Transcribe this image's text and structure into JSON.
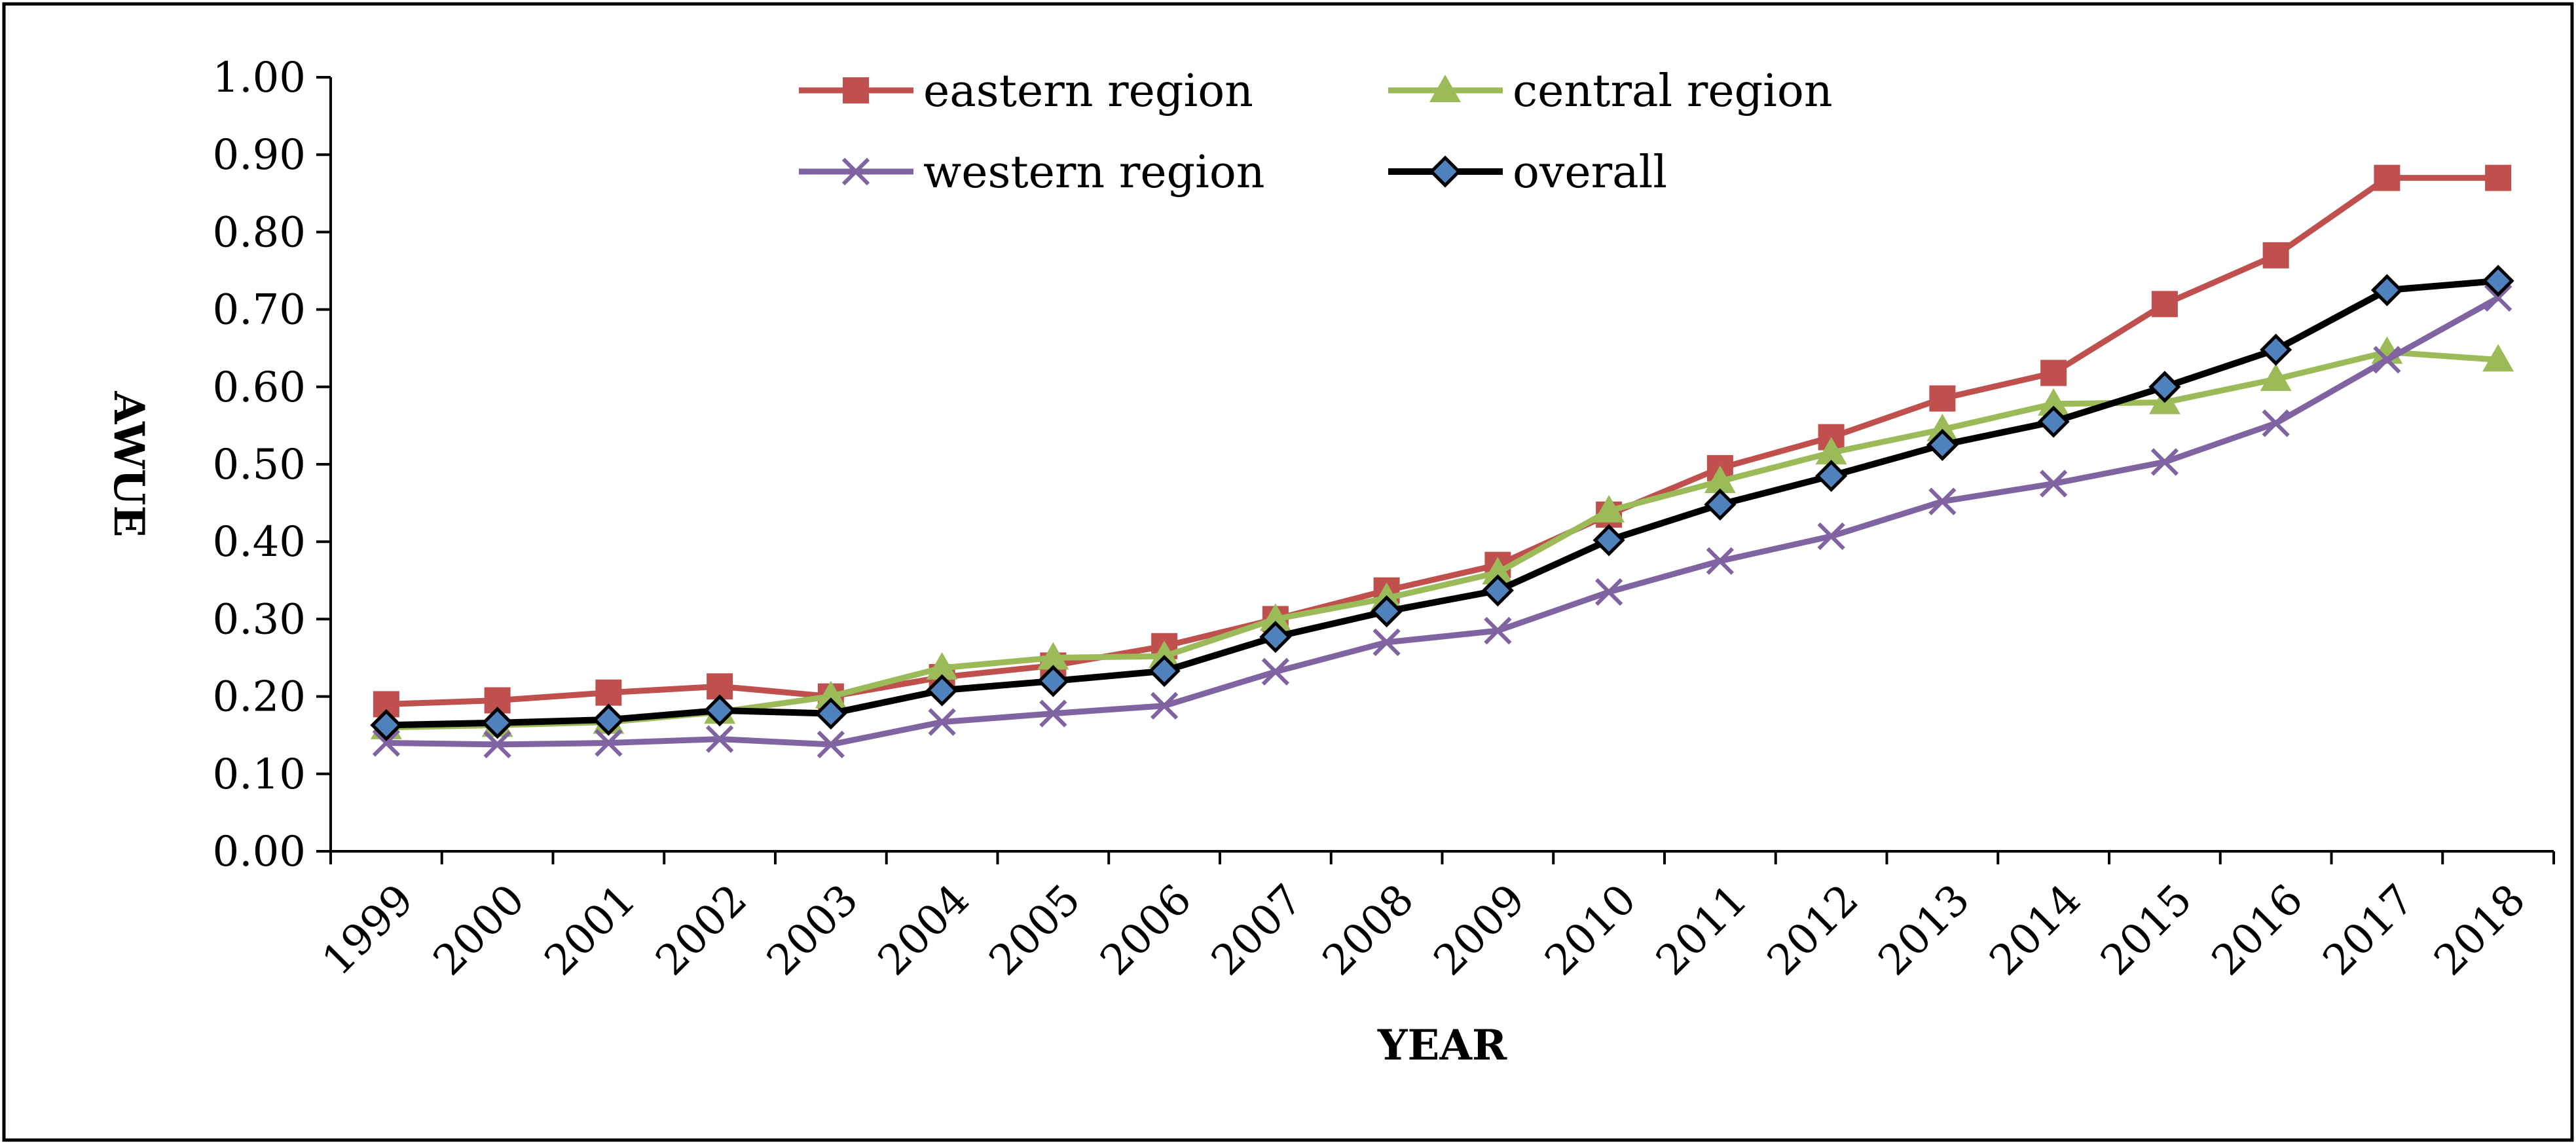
{
  "chart_data": {
    "type": "line",
    "xlabel": "YEAR",
    "ylabel": "AWUE",
    "ylim": [
      0,
      1.0
    ],
    "yticks": [
      "0.00",
      "0.10",
      "0.20",
      "0.30",
      "0.40",
      "0.50",
      "0.60",
      "0.70",
      "0.80",
      "0.90",
      "1.00"
    ],
    "categories": [
      "1999",
      "2000",
      "2001",
      "2002",
      "2003",
      "2004",
      "2005",
      "2006",
      "2007",
      "2008",
      "2009",
      "2010",
      "2011",
      "2012",
      "2013",
      "2014",
      "2015",
      "2016",
      "2017",
      "2018"
    ],
    "grid": false,
    "legend_position": "top",
    "series": [
      {
        "name": "eastern region",
        "color": "#C0504D",
        "marker": "square",
        "values": [
          0.19,
          0.195,
          0.205,
          0.213,
          0.2,
          0.225,
          0.24,
          0.265,
          0.3,
          0.337,
          0.37,
          0.435,
          0.495,
          0.535,
          0.585,
          0.618,
          0.707,
          0.77,
          0.87,
          0.87
        ]
      },
      {
        "name": "central region",
        "color": "#9BBB59",
        "marker": "triangle",
        "values": [
          0.16,
          0.163,
          0.167,
          0.18,
          0.2,
          0.237,
          0.25,
          0.252,
          0.3,
          0.327,
          0.36,
          0.44,
          0.478,
          0.515,
          0.545,
          0.578,
          0.58,
          0.61,
          0.645,
          0.635
        ]
      },
      {
        "name": "western region",
        "color": "#8064A2",
        "marker": "x",
        "values": [
          0.14,
          0.138,
          0.14,
          0.145,
          0.138,
          0.167,
          0.178,
          0.188,
          0.232,
          0.27,
          0.285,
          0.335,
          0.375,
          0.407,
          0.452,
          0.475,
          0.503,
          0.553,
          0.635,
          0.715
        ]
      },
      {
        "name": "overall",
        "color": "#000000",
        "marker": "diamond",
        "marker_fill": "#4F81BD",
        "values": [
          0.163,
          0.166,
          0.17,
          0.182,
          0.178,
          0.208,
          0.22,
          0.233,
          0.277,
          0.31,
          0.337,
          0.402,
          0.448,
          0.485,
          0.525,
          0.555,
          0.6,
          0.648,
          0.725,
          0.737
        ]
      }
    ]
  }
}
